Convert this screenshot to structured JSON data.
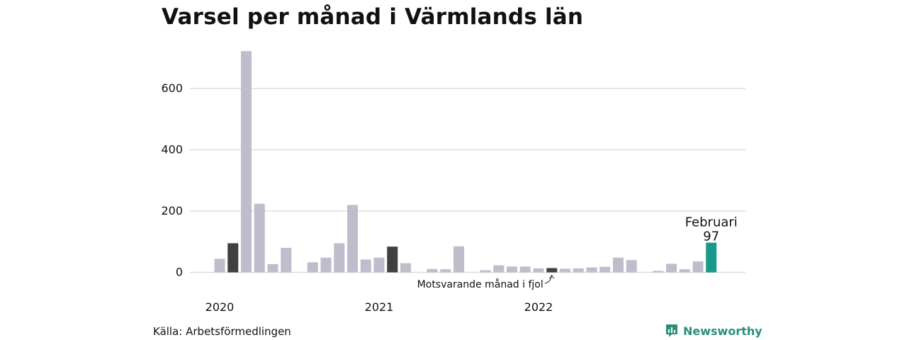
{
  "chart_data": {
    "type": "bar",
    "title": "Varsel per månad i Värmlands län",
    "xlabel": "",
    "ylabel": "",
    "ylim": [
      0,
      720
    ],
    "yticks": [
      0,
      200,
      400,
      600
    ],
    "grid": true,
    "x": [
      "2020-01",
      "2020-02",
      "2020-03",
      "2020-04",
      "2020-05",
      "2020-06",
      "2020-07",
      "2020-08",
      "2020-09",
      "2020-10",
      "2020-11",
      "2020-12",
      "2021-01",
      "2021-02",
      "2021-03",
      "2021-04",
      "2021-05",
      "2021-06",
      "2021-07",
      "2021-08",
      "2021-09",
      "2021-10",
      "2021-11",
      "2021-12",
      "2022-01",
      "2022-02",
      "2022-03",
      "2022-04",
      "2022-05",
      "2022-06",
      "2022-07",
      "2022-08",
      "2022-09",
      "2022-10",
      "2022-11",
      "2022-12",
      "2023-01",
      "2023-02"
    ],
    "values": [
      44,
      95,
      722,
      224,
      27,
      80,
      null,
      33,
      48,
      95,
      220,
      42,
      48,
      84,
      30,
      null,
      11,
      10,
      85,
      null,
      7,
      23,
      19,
      19,
      13,
      14,
      12,
      13,
      16,
      18,
      48,
      40,
      null,
      5,
      28,
      10,
      36,
      97
    ],
    "highlight_previous_year": [
      "2020-02",
      "2021-02",
      "2022-02"
    ],
    "highlight_current": "2023-02",
    "year_labels": [
      {
        "label": "2020",
        "x": "2020-01"
      },
      {
        "label": "2021",
        "x": "2021-01"
      },
      {
        "label": "2022",
        "x": "2022-01"
      }
    ],
    "annotations": {
      "current_label": "Februari",
      "current_value": "97",
      "previous_year_label": "Motsvarande månad i fjol"
    },
    "colors": {
      "default": "#bebdcb",
      "previous_year": "#404040",
      "current": "#1a9a8a",
      "grid": "#dddddd"
    }
  },
  "footer": {
    "source": "Källa: Arbetsförmedlingen",
    "brand": "Newsworthy"
  }
}
